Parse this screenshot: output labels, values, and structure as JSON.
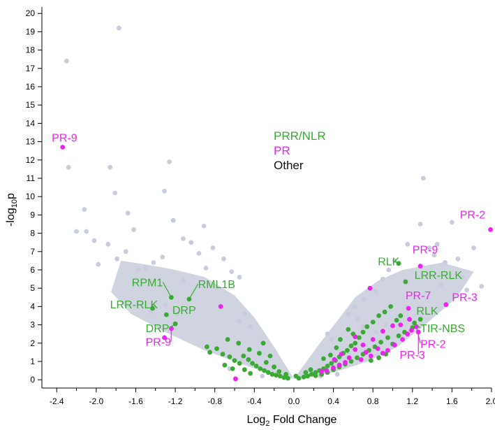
{
  "chart_data": {
    "type": "scatter",
    "title": "",
    "xlabel": "Log",
    "xlabel_sub": "2",
    "xlabel_rest": " Fold Change",
    "ylabel": "-log",
    "ylabel_sub": "10",
    "ylabel_rest": "p",
    "xlim": [
      -2.55,
      2.0
    ],
    "ylim": [
      -0.3,
      20.2
    ],
    "xticks": [
      -2.4,
      -2.0,
      -1.6,
      -1.2,
      -0.8,
      -0.4,
      0.0,
      0.4,
      0.8,
      1.2,
      1.6,
      2.0
    ],
    "xtick_labels": [
      "-2.4",
      "-2.0",
      "-1.6",
      "-1.2",
      "-0.8",
      "-0.4",
      "0.0",
      "0.4",
      "0.8",
      "1.2",
      "1.6",
      "2.0"
    ],
    "yticks": [
      0,
      1,
      2,
      3,
      4,
      5,
      6,
      7,
      8,
      9,
      10,
      11,
      12,
      13,
      14,
      15,
      16,
      17,
      18,
      19,
      20
    ],
    "ytick_labels": [
      "0",
      "1",
      "2",
      "3",
      "4",
      "5",
      "6",
      "7",
      "8",
      "9",
      "10",
      "11",
      "12",
      "13",
      "14",
      "15",
      "16",
      "17",
      "18",
      "19",
      "20"
    ],
    "grid": false,
    "legend": {
      "placement": "top-center",
      "entries": [
        {
          "name": "PRR/NLR",
          "color": "#3aaa35"
        },
        {
          "name": "PR",
          "color": "#ee22ee"
        },
        {
          "name": "Other",
          "color": "#111111"
        }
      ]
    },
    "colors": {
      "other": "#c8ccdc",
      "prr_nlr": "#3aaa35",
      "pr": "#ee22ee"
    },
    "series": [
      {
        "group": "other",
        "points": [
          [
            -1.77,
            19.2
          ],
          [
            -2.3,
            17.4
          ],
          [
            -2.28,
            11.6
          ],
          [
            -2.12,
            9.3
          ],
          [
            -2.2,
            8.1
          ],
          [
            -2.1,
            8.1
          ],
          [
            -1.86,
            11.6
          ],
          [
            -1.68,
            9.1
          ],
          [
            -1.62,
            8.2
          ],
          [
            -1.81,
            10.2
          ],
          [
            -1.26,
            11.9
          ],
          [
            -1.31,
            10.3
          ],
          [
            -1.22,
            8.7
          ],
          [
            -0.91,
            8.4
          ],
          [
            -0.82,
            7.2
          ],
          [
            -0.71,
            6.6
          ],
          [
            -0.63,
            5.9
          ],
          [
            -0.55,
            5.6
          ],
          [
            -1.98,
            6.3
          ],
          [
            -1.88,
            7.4
          ],
          [
            -1.79,
            6.6
          ],
          [
            -1.7,
            7.0
          ],
          [
            -1.5,
            6.1
          ],
          [
            -1.42,
            6.4
          ],
          [
            -1.33,
            6.7
          ],
          [
            -1.12,
            7.7
          ],
          [
            -1.04,
            7.5
          ],
          [
            -0.96,
            6.9
          ],
          [
            -0.89,
            6.1
          ],
          [
            -2.02,
            7.6
          ],
          [
            -1.58,
            6.0
          ],
          [
            -1.12,
            5.4
          ],
          [
            1.31,
            11.0
          ],
          [
            1.28,
            8.5
          ],
          [
            1.45,
            7.4
          ],
          [
            1.6,
            8.6
          ],
          [
            1.82,
            7.2
          ],
          [
            1.9,
            5.1
          ],
          [
            1.37,
            7.2
          ],
          [
            1.15,
            7.4
          ],
          [
            1.02,
            6.5
          ],
          [
            0.96,
            6.0
          ],
          [
            0.9,
            5.5
          ],
          [
            0.83,
            4.8
          ],
          [
            0.71,
            4.4
          ],
          [
            0.61,
            4.0
          ],
          [
            0.55,
            3.6
          ],
          [
            0.65,
            3.3
          ],
          [
            0.7,
            2.9
          ],
          [
            0.62,
            2.4
          ],
          [
            1.42,
            6.8
          ],
          [
            1.53,
            6.4
          ],
          [
            1.66,
            6.6
          ],
          [
            1.7,
            5.6
          ],
          [
            1.75,
            4.9
          ],
          [
            1.49,
            5.2
          ],
          [
            -0.65,
            0.6
          ],
          [
            0.44,
            0.3
          ],
          [
            -0.32,
            0.2
          ],
          [
            0.27,
            0.2
          ],
          [
            -0.5,
            3.6
          ],
          [
            -0.55,
            3.2
          ],
          [
            -0.44,
            2.9
          ],
          [
            -1.3,
            4.1
          ],
          [
            -1.45,
            3.7
          ],
          [
            -1.18,
            3.6
          ],
          [
            0.38,
            2.2
          ],
          [
            0.34,
            2.5
          ],
          [
            0.93,
            3.0
          ],
          [
            0.83,
            2.6
          ]
        ]
      },
      {
        "group": "prr_nlr",
        "points": [
          [
            -1.43,
            3.9
          ],
          [
            -1.29,
            3.55
          ],
          [
            -1.24,
            4.5
          ],
          [
            -1.06,
            4.4
          ],
          [
            -1.2,
            3.05
          ],
          [
            -0.88,
            1.8
          ],
          [
            -0.85,
            1.5
          ],
          [
            -0.78,
            1.7
          ],
          [
            -0.72,
            1.4
          ],
          [
            -0.65,
            1.25
          ],
          [
            -0.6,
            1.05
          ],
          [
            -0.55,
            0.9
          ],
          [
            -0.51,
            1.3
          ],
          [
            -0.46,
            1.1
          ],
          [
            -0.42,
            0.9
          ],
          [
            -0.38,
            0.75
          ],
          [
            -0.34,
            0.6
          ],
          [
            -0.3,
            0.5
          ],
          [
            -0.26,
            0.4
          ],
          [
            -0.22,
            0.3
          ],
          [
            -0.18,
            0.25
          ],
          [
            -0.14,
            0.2
          ],
          [
            -0.1,
            0.12
          ],
          [
            -0.06,
            0.08
          ],
          [
            -0.45,
            1.65
          ],
          [
            -0.35,
            1.45
          ],
          [
            -0.31,
            2.0
          ],
          [
            -0.56,
            2.0
          ],
          [
            -0.67,
            2.2
          ],
          [
            -0.7,
            0.8
          ],
          [
            -0.62,
            0.6
          ],
          [
            -0.5,
            0.55
          ],
          [
            -0.44,
            0.35
          ],
          [
            -0.28,
            0.95
          ],
          [
            -0.2,
            0.7
          ],
          [
            -0.24,
            1.3
          ],
          [
            0.05,
            0.08
          ],
          [
            0.1,
            0.15
          ],
          [
            0.14,
            0.2
          ],
          [
            0.18,
            0.3
          ],
          [
            0.22,
            0.4
          ],
          [
            0.26,
            0.5
          ],
          [
            0.3,
            0.6
          ],
          [
            0.34,
            0.75
          ],
          [
            0.38,
            0.9
          ],
          [
            0.42,
            1.05
          ],
          [
            0.46,
            1.25
          ],
          [
            0.5,
            1.45
          ],
          [
            0.54,
            1.6
          ],
          [
            0.58,
            1.85
          ],
          [
            0.62,
            2.0
          ],
          [
            0.66,
            2.3
          ],
          [
            0.7,
            2.6
          ],
          [
            0.74,
            2.9
          ],
          [
            0.8,
            3.15
          ],
          [
            0.86,
            3.5
          ],
          [
            0.92,
            3.7
          ],
          [
            0.98,
            4.0
          ],
          [
            1.04,
            3.25
          ],
          [
            1.08,
            3.5
          ],
          [
            1.13,
            5.35
          ],
          [
            1.06,
            6.35
          ],
          [
            1.28,
            3.3
          ],
          [
            1.22,
            3.1
          ],
          [
            1.2,
            2.85
          ],
          [
            0.95,
            2.3
          ],
          [
            0.88,
            2.05
          ],
          [
            0.82,
            1.8
          ],
          [
            0.76,
            1.6
          ],
          [
            0.7,
            1.4
          ],
          [
            0.64,
            1.2
          ],
          [
            0.58,
            1.0
          ],
          [
            0.52,
            0.85
          ],
          [
            0.46,
            0.7
          ],
          [
            0.4,
            0.55
          ],
          [
            0.34,
            0.4
          ],
          [
            0.28,
            0.3
          ],
          [
            0.22,
            0.22
          ],
          [
            0.55,
            2.75
          ],
          [
            0.6,
            2.5
          ],
          [
            0.47,
            2.2
          ],
          [
            0.43,
            1.75
          ],
          [
            0.37,
            1.35
          ],
          [
            0.3,
            1.15
          ],
          [
            1.0,
            1.95
          ],
          [
            1.06,
            2.4
          ],
          [
            1.12,
            2.6
          ],
          [
            0.93,
            1.4
          ],
          [
            0.86,
            1.2
          ],
          [
            0.78,
            1.05
          ],
          [
            0.12,
            0.4
          ],
          [
            -0.08,
            0.3
          ],
          [
            0.02,
            0.2
          ],
          [
            -0.15,
            0.45
          ],
          [
            0.17,
            0.55
          ]
        ]
      },
      {
        "group": "pr",
        "points": [
          [
            -2.34,
            12.7
          ],
          [
            -1.24,
            2.8
          ],
          [
            -1.31,
            2.3
          ],
          [
            -0.74,
            4.0
          ],
          [
            -0.59,
            0.05
          ],
          [
            1.28,
            6.2
          ],
          [
            1.99,
            8.2
          ],
          [
            1.54,
            4.1
          ],
          [
            1.16,
            3.9
          ],
          [
            1.17,
            3.3
          ],
          [
            1.24,
            2.9
          ],
          [
            1.26,
            2.6
          ],
          [
            0.77,
            5.0
          ],
          [
            0.62,
            2.35
          ],
          [
            0.73,
            1.5
          ],
          [
            0.78,
            1.3
          ],
          [
            0.85,
            1.7
          ],
          [
            0.9,
            1.45
          ],
          [
            0.95,
            1.6
          ],
          [
            1.02,
            1.9
          ],
          [
            1.1,
            2.2
          ],
          [
            1.15,
            2.5
          ],
          [
            1.19,
            2.7
          ],
          [
            0.68,
            1.1
          ],
          [
            0.56,
            1.2
          ],
          [
            0.52,
            0.95
          ],
          [
            0.46,
            0.8
          ],
          [
            0.4,
            0.65
          ],
          [
            0.33,
            0.5
          ],
          [
            0.28,
            0.45
          ],
          [
            0.62,
            1.65
          ],
          [
            0.7,
            1.9
          ],
          [
            0.8,
            2.2
          ],
          [
            0.9,
            2.65
          ],
          [
            1.0,
            2.95
          ],
          [
            1.08,
            3.0
          ],
          [
            0.48,
            1.4
          ],
          [
            0.41,
            1.1
          ]
        ]
      }
    ],
    "annotations": [
      {
        "text": "PR-9",
        "group": "pr",
        "tx": -2.45,
        "ty": 13.0,
        "point": [
          -2.34,
          12.7
        ],
        "leader": false
      },
      {
        "text": "RPM1",
        "group": "prr_nlr",
        "tx": -1.64,
        "ty": 5.1,
        "point": [
          -1.24,
          4.5
        ],
        "leader": true
      },
      {
        "text": "RML1B",
        "group": "prr_nlr",
        "tx": -0.97,
        "ty": 5.0,
        "point": [
          -1.06,
          4.4
        ],
        "leader": true
      },
      {
        "text": "LRR-RLK",
        "group": "prr_nlr",
        "tx": -1.86,
        "ty": 3.9,
        "point": [
          -1.43,
          3.9
        ],
        "leader": true
      },
      {
        "text": "DRP",
        "group": "prr_nlr",
        "tx": -1.23,
        "ty": 3.6,
        "point": [
          -1.29,
          3.55
        ],
        "leader": false
      },
      {
        "text": "DRP",
        "group": "prr_nlr",
        "tx": -1.5,
        "ty": 2.6,
        "point": [
          -1.2,
          3.05
        ],
        "leader": true
      },
      {
        "text": "PR-9",
        "group": "pr",
        "tx": -1.5,
        "ty": 1.85,
        "point": [
          -1.24,
          2.8
        ],
        "leader": true
      },
      {
        "text": "RLK",
        "group": "prr_nlr",
        "tx": 0.85,
        "ty": 6.25,
        "point": [
          1.06,
          6.35
        ],
        "leader": false
      },
      {
        "text": "PR-9",
        "group": "pr",
        "tx": 1.2,
        "ty": 6.9,
        "point": [
          1.28,
          6.2
        ],
        "leader": false
      },
      {
        "text": "LRR-RLK",
        "group": "prr_nlr",
        "tx": 1.22,
        "ty": 5.5,
        "point": [
          1.13,
          5.35
        ],
        "leader": false
      },
      {
        "text": "PR-2",
        "group": "pr",
        "tx": 1.68,
        "ty": 8.8,
        "point": [
          1.99,
          8.2
        ],
        "leader": false
      },
      {
        "text": "PR-3",
        "group": "pr",
        "tx": 1.6,
        "ty": 4.3,
        "point": [
          1.54,
          4.1
        ],
        "leader": false
      },
      {
        "text": "PR-7",
        "group": "pr",
        "tx": 1.13,
        "ty": 4.4,
        "point": [
          1.16,
          3.9
        ],
        "leader": false
      },
      {
        "text": "RLK",
        "group": "prr_nlr",
        "tx": 1.24,
        "ty": 3.55,
        "point": [
          1.28,
          3.3
        ],
        "leader": false
      },
      {
        "text": "TIR-NBS",
        "group": "prr_nlr",
        "tx": 1.28,
        "ty": 2.6,
        "point": [
          1.22,
          3.1
        ],
        "leader": true
      },
      {
        "text": "PR-2",
        "group": "pr",
        "tx": 1.28,
        "ty": 1.75,
        "point": [
          1.24,
          2.9
        ],
        "leader": true
      },
      {
        "text": "PR-3",
        "group": "pr",
        "tx": 1.07,
        "ty": 1.15,
        "point": [
          1.26,
          2.6
        ],
        "leader": true
      }
    ]
  }
}
